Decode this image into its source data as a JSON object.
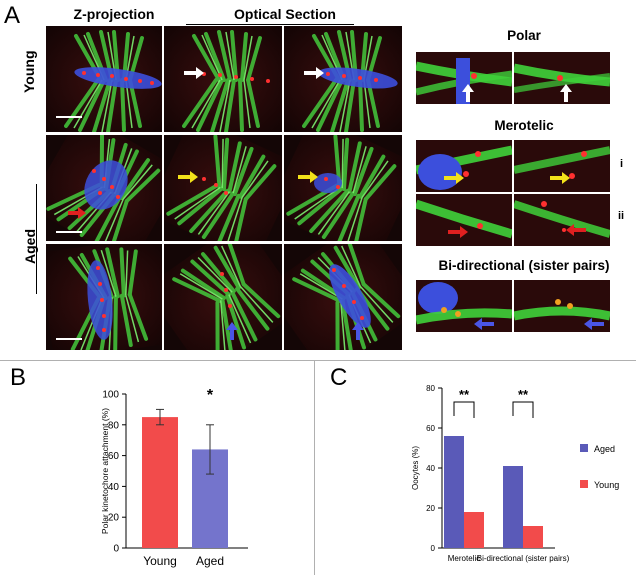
{
  "panel_labels": {
    "a": "A",
    "b": "B",
    "c": "C"
  },
  "panelA": {
    "col_headers": {
      "z_projection": "Z-projection",
      "optical_section": "Optical Section"
    },
    "row_labels": {
      "young": "Young",
      "aged": "Aged"
    },
    "insets": {
      "polar": "Polar",
      "merotelic": "Merotelic",
      "merotelic_rows": [
        "i",
        "ii"
      ],
      "bidirectional": "Bi-directional (sister pairs)"
    },
    "colors": {
      "microtubules": "#3fd13a",
      "chromosomes": "#3a4fe0",
      "kinetochores": "#ff2a2a",
      "arrow_white": "#ffffff",
      "arrow_yellow": "#f2e21a",
      "arrow_red": "#e02020",
      "arrow_blue": "#4a55e6"
    }
  },
  "chart_data": [
    {
      "type": "bar",
      "categories": [
        "Young",
        "Aged"
      ],
      "values": [
        85,
        64
      ],
      "errors": [
        5,
        16
      ],
      "colors": [
        "#f24b4b",
        "#7474cc"
      ],
      "ylabel": "Polar kinetochore attachment (%)",
      "ylim": [
        0,
        100
      ],
      "yticks": [
        0,
        20,
        40,
        60,
        80,
        100
      ],
      "significance": "*"
    },
    {
      "type": "bar",
      "categories": [
        "Merotelic",
        "Bi-directional (sister pairs)"
      ],
      "series": [
        {
          "name": "Aged",
          "values": [
            56,
            41
          ],
          "color": "#5a5ab8"
        },
        {
          "name": "Young",
          "values": [
            18,
            11
          ],
          "color": "#f24b4b"
        }
      ],
      "ylabel": "Oocytes (%)",
      "ylim": [
        0,
        80
      ],
      "yticks": [
        0,
        20,
        40,
        60,
        80
      ],
      "significance": [
        "**",
        "**"
      ],
      "legend": "right"
    }
  ]
}
